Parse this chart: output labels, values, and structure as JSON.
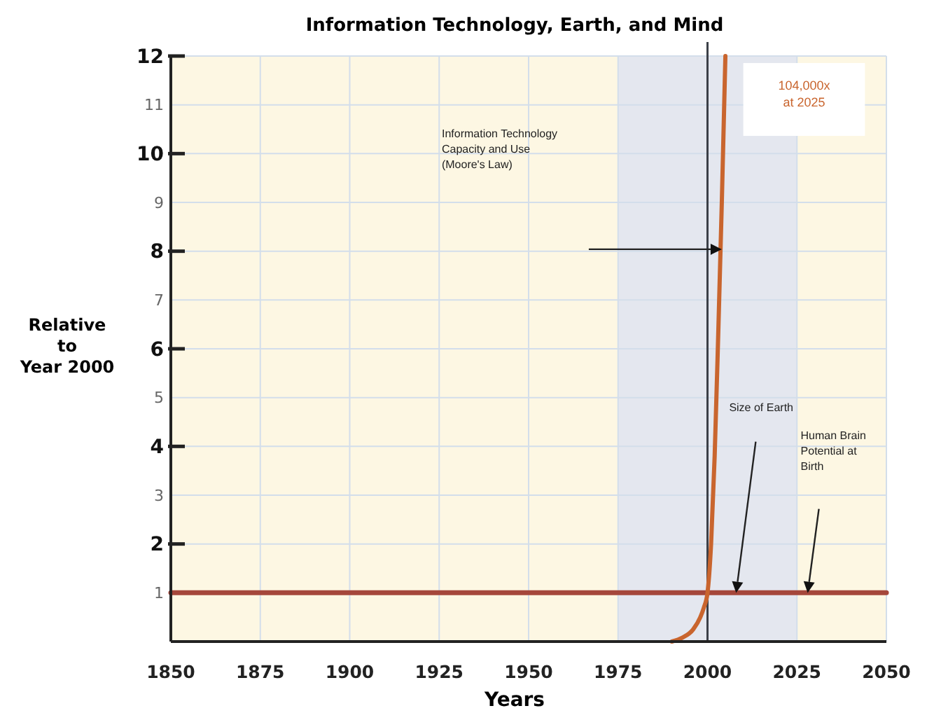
{
  "chart_data": {
    "type": "line",
    "title": "Information Technology, Earth, and Mind",
    "xlabel": "Years",
    "ylabel": "Relative to Year 2000",
    "xlim": [
      1850,
      2050
    ],
    "xticks": [
      1850,
      1875,
      1900,
      1925,
      1950,
      1975,
      2000,
      2025,
      2050
    ],
    "ylim": [
      0,
      12
    ],
    "yticks": [
      1,
      2,
      3,
      4,
      5,
      6,
      7,
      8,
      9,
      10,
      11,
      12
    ],
    "grid": true,
    "series": [
      {
        "color": "#a5473b",
        "x": [
          1850,
          2050
        ],
        "values": [
          1,
          1
        ]
      },
      {
        "color": "#c9652e",
        "x": [
          1990,
          1993,
          1996,
          1998,
          1999,
          2000,
          2001,
          2002,
          2003,
          2004,
          2005
        ],
        "values": [
          0,
          0.08,
          0.25,
          0.5,
          0.7,
          1,
          2,
          3.8,
          6.3,
          9,
          12
        ]
      }
    ],
    "bands": [
      {
        "axis": "x",
        "from": 1975,
        "to": 2025,
        "color": "#e4e7ef"
      }
    ],
    "ref_lines": [
      {
        "axis": "x",
        "value": 2000,
        "color": "#3c4048"
      }
    ],
    "annotations": [
      "Information Technology Capacity and Use (Moore's Law)",
      "Size of Earth",
      "Human Brain Potential at Birth",
      "104,000x at 2025"
    ]
  }
}
